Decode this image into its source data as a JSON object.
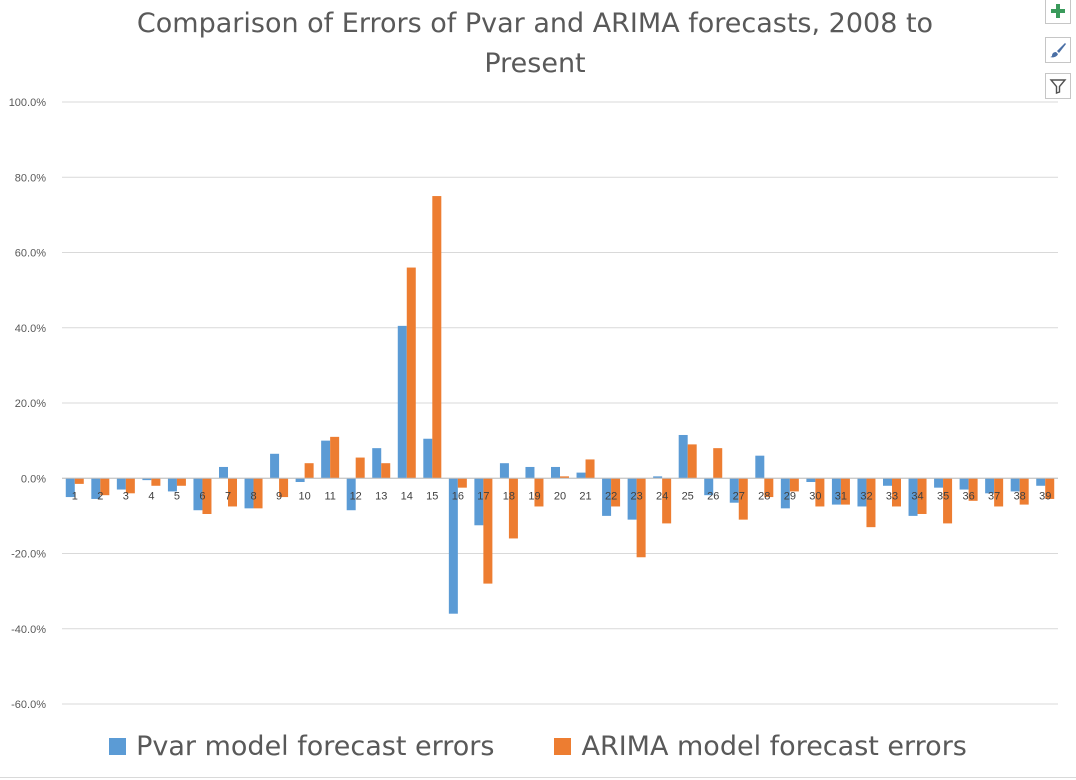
{
  "chart_data": {
    "type": "bar",
    "title_lines": [
      "Comparison of Errors of Pvar and ARIMA forecasts, 2008 to",
      "Present"
    ],
    "categories": [
      "1",
      "2",
      "3",
      "4",
      "5",
      "6",
      "7",
      "8",
      "9",
      "10",
      "11",
      "12",
      "13",
      "14",
      "15",
      "16",
      "17",
      "18",
      "19",
      "20",
      "21",
      "22",
      "23",
      "24",
      "25",
      "26",
      "27",
      "28",
      "29",
      "30",
      "31",
      "32",
      "33",
      "34",
      "35",
      "36",
      "37",
      "38",
      "39"
    ],
    "series": [
      {
        "name": "Pvar model forecast errors",
        "color": "#5b9bd5",
        "values": [
          -5.0,
          -5.5,
          -3.0,
          -0.5,
          -3.5,
          -8.5,
          3.0,
          -8.0,
          6.5,
          -1.0,
          10.0,
          -8.5,
          8.0,
          40.5,
          10.5,
          -36.0,
          -12.5,
          4.0,
          3.0,
          3.0,
          1.5,
          -10.0,
          -11.0,
          0.5,
          11.5,
          -4.5,
          -6.5,
          6.0,
          -8.0,
          -1.0,
          -7.0,
          -7.5,
          -2.0,
          -10.0,
          -2.5,
          -3.0,
          -4.0,
          -3.5,
          -2.0
        ]
      },
      {
        "name": "ARIMA model forecast errors",
        "color": "#ed7d31",
        "values": [
          -1.5,
          -4.5,
          -4.0,
          -2.0,
          -2.0,
          -9.5,
          -7.5,
          -8.0,
          -5.0,
          4.0,
          11.0,
          5.5,
          4.0,
          56.0,
          75.0,
          -2.5,
          -28.0,
          -16.0,
          -7.5,
          0.5,
          5.0,
          -7.5,
          -21.0,
          -12.0,
          9.0,
          8.0,
          -11.0,
          -5.0,
          -3.5,
          -7.5,
          -7.0,
          -13.0,
          -7.5,
          -9.5,
          -12.0,
          -6.0,
          -7.5,
          -7.0,
          -5.5
        ]
      }
    ],
    "ylim": [
      -60,
      100
    ],
    "yticks": [
      "100.0%",
      "80.0%",
      "60.0%",
      "40.0%",
      "20.0%",
      "0.0%",
      "-20.0%",
      "-40.0%",
      "-60.0%"
    ],
    "grid": true,
    "legend_position": "bottom"
  },
  "toolbar": {
    "add_icon": "plus-icon",
    "style_icon": "paintbrush-icon",
    "filter_icon": "funnel-icon"
  }
}
